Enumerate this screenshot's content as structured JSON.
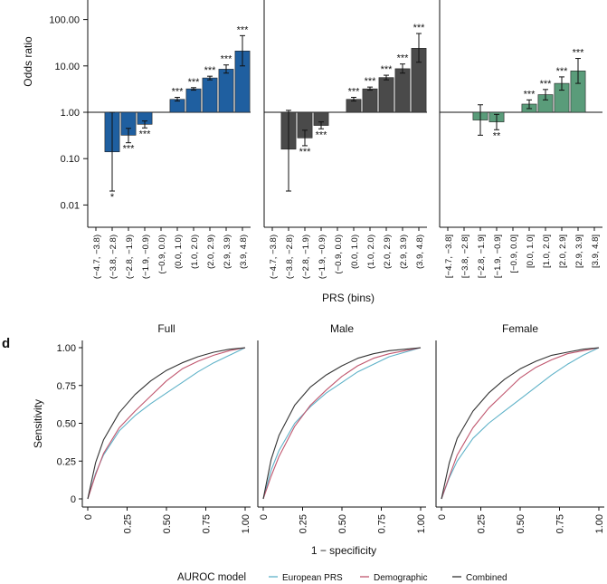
{
  "top": {
    "ylabel": "Odds ratio",
    "xlabel": "PRS (bins)",
    "yticks": [
      "0.01",
      "0.10",
      "1.00",
      "10.00",
      "100.00"
    ]
  },
  "bottom": {
    "panel_letter": "d",
    "xlabel": "1 − specificity",
    "ylabel": "Sensitivity",
    "ticks": [
      "0",
      "0.25",
      "0.50",
      "0.75",
      "1.00"
    ],
    "legend_title": "AUROC model"
  },
  "chart_data": [
    {
      "type": "bar",
      "panel": "Full",
      "log_y": true,
      "ylim": [
        0.005,
        100
      ],
      "color": "#1f5fa0",
      "categories": [
        "(−4.7, −3.8)",
        "(−3.8, −2.8)",
        "(−2.8, −1.9)",
        "(−1.9, −0.9)",
        "(−0.9, 0.0)",
        "(0.0, 1.0)",
        "(1.0, 2.0)",
        "(2.0, 2.9)",
        "(2.9, 3.9)",
        "(3.9, 4.8)"
      ],
      "values": [
        null,
        0.14,
        0.32,
        0.55,
        1.0,
        1.9,
        3.2,
        5.5,
        8.5,
        21
      ],
      "ci": [
        null,
        [
          0.02,
          1.0
        ],
        [
          0.22,
          0.45
        ],
        [
          0.46,
          0.65
        ],
        null,
        [
          1.75,
          2.1
        ],
        [
          3.0,
          3.4
        ],
        [
          5.0,
          6.0
        ],
        [
          7.0,
          10.5
        ],
        [
          10,
          45
        ]
      ],
      "significance": [
        "",
        "*",
        "***",
        "***",
        "",
        "***",
        "***",
        "***",
        "***",
        "***"
      ]
    },
    {
      "type": "bar",
      "panel": "Male",
      "log_y": true,
      "ylim": [
        0.005,
        100
      ],
      "color": "#4a4a4a",
      "categories": [
        "(−4.7, −3.8)",
        "(−3.8, −2.8)",
        "(−2.8, −1.9)",
        "(−1.9, −0.9)",
        "(−0.9, 0.0)",
        "(0.0, 1.0)",
        "(1.0, 2.0)",
        "(2.0, 2.9)",
        "(2.9, 3.9)",
        "(3.9, 4.8)"
      ],
      "values": [
        null,
        0.16,
        0.28,
        0.52,
        1.0,
        1.9,
        3.2,
        5.6,
        8.7,
        24
      ],
      "ci": [
        null,
        [
          0.02,
          1.1
        ],
        [
          0.19,
          0.41
        ],
        [
          0.44,
          0.62
        ],
        null,
        [
          1.75,
          2.1
        ],
        [
          3.0,
          3.5
        ],
        [
          5.0,
          6.3
        ],
        [
          7.0,
          11.0
        ],
        [
          12,
          50
        ]
      ],
      "significance": [
        "",
        "",
        "***",
        "***",
        "",
        "***",
        "***",
        "***",
        "***",
        "***"
      ]
    },
    {
      "type": "bar",
      "panel": "Female",
      "log_y": true,
      "ylim": [
        0.005,
        100
      ],
      "color": "#5a9c7a",
      "categories": [
        "[−4.7, −3.8]",
        "[−3.8, −2.8]",
        "[−2.8, −1.9]",
        "[−1.9, −0.9]",
        "[−0.9, 0.0]",
        "[0.0, 1.0]",
        "[1.0, 2.0]",
        "[2.0, 2.9]",
        "[2.9, 3.9]",
        "[3.9, 4.8]"
      ],
      "values": [
        null,
        null,
        0.68,
        0.62,
        1.0,
        1.5,
        2.4,
        4.2,
        7.8,
        null
      ],
      "ci": [
        null,
        null,
        [
          0.32,
          1.45
        ],
        [
          0.42,
          0.9
        ],
        null,
        [
          1.2,
          1.85
        ],
        [
          1.85,
          3.1
        ],
        [
          3.0,
          5.8
        ],
        [
          4.2,
          14.5
        ],
        null
      ],
      "significance": [
        "",
        "",
        "",
        "**",
        "",
        "***",
        "***",
        "***",
        "***",
        ""
      ]
    },
    {
      "type": "line",
      "panel": "Full",
      "xlim": [
        0,
        1
      ],
      "ylim": [
        0,
        1
      ],
      "series": [
        {
          "name": "European PRS",
          "color": "#5fb2c8",
          "x": [
            0,
            0.05,
            0.1,
            0.2,
            0.3,
            0.4,
            0.5,
            0.6,
            0.7,
            0.8,
            0.9,
            1.0
          ],
          "y": [
            0,
            0.17,
            0.29,
            0.45,
            0.55,
            0.63,
            0.7,
            0.77,
            0.84,
            0.9,
            0.95,
            1.0
          ]
        },
        {
          "name": "Demographic",
          "color": "#c0566e",
          "x": [
            0,
            0.05,
            0.1,
            0.2,
            0.3,
            0.4,
            0.5,
            0.6,
            0.7,
            0.8,
            0.9,
            1.0
          ],
          "y": [
            0,
            0.16,
            0.3,
            0.47,
            0.58,
            0.68,
            0.78,
            0.86,
            0.91,
            0.95,
            0.98,
            1.0
          ]
        },
        {
          "name": "Combined",
          "color": "#333333",
          "x": [
            0,
            0.05,
            0.1,
            0.2,
            0.3,
            0.4,
            0.5,
            0.6,
            0.7,
            0.8,
            0.9,
            1.0
          ],
          "y": [
            0,
            0.24,
            0.39,
            0.57,
            0.69,
            0.78,
            0.85,
            0.9,
            0.94,
            0.97,
            0.99,
            1.0
          ]
        }
      ]
    },
    {
      "type": "line",
      "panel": "Male",
      "xlim": [
        0,
        1
      ],
      "ylim": [
        0,
        1
      ],
      "series": [
        {
          "name": "European PRS",
          "color": "#5fb2c8",
          "x": [
            0,
            0.05,
            0.1,
            0.2,
            0.3,
            0.4,
            0.5,
            0.6,
            0.7,
            0.8,
            0.9,
            1.0
          ],
          "y": [
            0,
            0.19,
            0.32,
            0.5,
            0.61,
            0.7,
            0.77,
            0.84,
            0.89,
            0.94,
            0.97,
            1.0
          ]
        },
        {
          "name": "Demographic",
          "color": "#c0566e",
          "x": [
            0,
            0.05,
            0.1,
            0.2,
            0.3,
            0.4,
            0.5,
            0.6,
            0.7,
            0.8,
            0.9,
            1.0
          ],
          "y": [
            0,
            0.15,
            0.28,
            0.48,
            0.62,
            0.72,
            0.81,
            0.88,
            0.93,
            0.96,
            0.98,
            1.0
          ]
        },
        {
          "name": "Combined",
          "color": "#333333",
          "x": [
            0,
            0.05,
            0.1,
            0.2,
            0.3,
            0.4,
            0.5,
            0.6,
            0.7,
            0.8,
            0.9,
            1.0
          ],
          "y": [
            0,
            0.26,
            0.42,
            0.62,
            0.74,
            0.82,
            0.88,
            0.93,
            0.96,
            0.98,
            0.99,
            1.0
          ]
        }
      ]
    },
    {
      "type": "line",
      "panel": "Female",
      "xlim": [
        0,
        1
      ],
      "ylim": [
        0,
        1
      ],
      "series": [
        {
          "name": "European PRS",
          "color": "#5fb2c8",
          "x": [
            0,
            0.05,
            0.1,
            0.2,
            0.3,
            0.4,
            0.5,
            0.6,
            0.7,
            0.8,
            0.9,
            1.0
          ],
          "y": [
            0,
            0.14,
            0.25,
            0.4,
            0.5,
            0.58,
            0.66,
            0.74,
            0.82,
            0.89,
            0.95,
            1.0
          ]
        },
        {
          "name": "Demographic",
          "color": "#c0566e",
          "x": [
            0,
            0.05,
            0.1,
            0.2,
            0.3,
            0.4,
            0.5,
            0.6,
            0.7,
            0.8,
            0.9,
            1.0
          ],
          "y": [
            0,
            0.15,
            0.29,
            0.47,
            0.6,
            0.7,
            0.8,
            0.87,
            0.92,
            0.96,
            0.98,
            1.0
          ]
        },
        {
          "name": "Combined",
          "color": "#333333",
          "x": [
            0,
            0.05,
            0.1,
            0.2,
            0.3,
            0.4,
            0.5,
            0.6,
            0.7,
            0.8,
            0.9,
            1.0
          ],
          "y": [
            0,
            0.24,
            0.4,
            0.58,
            0.7,
            0.79,
            0.86,
            0.91,
            0.95,
            0.97,
            0.99,
            1.0
          ]
        }
      ]
    }
  ]
}
